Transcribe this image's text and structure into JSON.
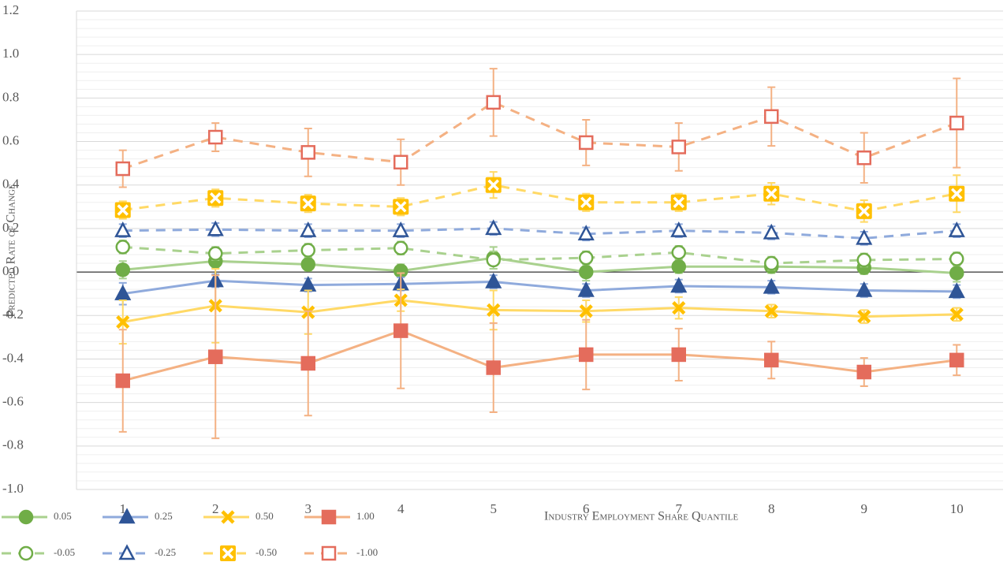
{
  "chart_data": {
    "type": "line",
    "x_label": "Industry Employment Share Quantile",
    "y_label": "Predicted Rate of Change",
    "categories": [
      "1",
      "2",
      "3",
      "4",
      "5",
      "6",
      "7",
      "8",
      "9",
      "10"
    ],
    "ylim": [
      -1.0,
      1.2
    ],
    "yticks": [
      {
        "value": -1.0,
        "label": "-1.0"
      },
      -0.8,
      -0.6,
      -0.4,
      -0.2,
      {
        "value": 0,
        "label": "0.0"
      },
      0.2,
      0.4,
      0.6,
      0.8,
      {
        "value": 1.0,
        "label": "1.0"
      },
      1.2
    ],
    "grid": true,
    "minor_grid_per_major": 5,
    "legend": "bottom-left",
    "series": [
      {
        "name": "0.05",
        "color": "#70ad47",
        "line_color": "#a9d18e",
        "marker": "circle",
        "filled": true,
        "dash": false,
        "values": [
          0.01,
          0.05,
          0.035,
          0.005,
          0.065,
          0.0,
          0.025,
          0.025,
          0.02,
          -0.005
        ],
        "errors": [
          0.04,
          0.03,
          0.03,
          0.03,
          0.05,
          0.04,
          0.03,
          0.03,
          0.03,
          0.04
        ]
      },
      {
        "name": "0.25",
        "color": "#2f5597",
        "line_color": "#8faadc",
        "marker": "triangle",
        "filled": true,
        "dash": false,
        "values": [
          -0.1,
          -0.04,
          -0.06,
          -0.055,
          -0.045,
          -0.085,
          -0.065,
          -0.07,
          -0.085,
          -0.09
        ],
        "errors": [
          0.05,
          0.03,
          0.03,
          0.03,
          0.03,
          0.03,
          0.03,
          0.03,
          0.03,
          0.03
        ]
      },
      {
        "name": "0.50",
        "color": "#ffc000",
        "line_color": "#ffd966",
        "marker": "x",
        "filled": true,
        "dash": false,
        "values": [
          -0.23,
          -0.155,
          -0.185,
          -0.13,
          -0.175,
          -0.18,
          -0.165,
          -0.18,
          -0.205,
          -0.195
        ],
        "errors": [
          0.1,
          0.17,
          0.1,
          0.05,
          0.09,
          0.05,
          0.05,
          0.03,
          0.03,
          0.03
        ]
      },
      {
        "name": "1.00",
        "color": "#e46c5c",
        "line_color": "#f4b183",
        "marker": "square",
        "filled": true,
        "dash": false,
        "values": [
          -0.5,
          -0.39,
          -0.42,
          -0.27,
          -0.44,
          -0.38,
          -0.38,
          -0.405,
          -0.46,
          -0.405
        ],
        "errors": [
          0.235,
          0.375,
          0.24,
          0.265,
          0.205,
          0.16,
          0.12,
          0.085,
          0.065,
          0.07
        ]
      },
      {
        "name": "-0.05",
        "color": "#70ad47",
        "line_color": "#a9d18e",
        "marker": "circle",
        "filled": false,
        "dash": true,
        "values": [
          0.115,
          0.085,
          0.1,
          0.11,
          0.055,
          0.065,
          0.09,
          0.04,
          0.055,
          0.06
        ],
        "errors": [
          0.03,
          0.03,
          0.03,
          0.03,
          0.04,
          0.03,
          0.03,
          0.03,
          0.03,
          0.03
        ]
      },
      {
        "name": "-0.25",
        "color": "#2f5597",
        "line_color": "#8faadc",
        "marker": "triangle",
        "filled": false,
        "dash": true,
        "values": [
          0.19,
          0.195,
          0.19,
          0.19,
          0.2,
          0.175,
          0.19,
          0.18,
          0.155,
          0.19
        ],
        "errors": [
          0.03,
          0.03,
          0.03,
          0.03,
          0.03,
          0.03,
          0.03,
          0.03,
          0.03,
          0.03
        ]
      },
      {
        "name": "-0.50",
        "color": "#ffc000",
        "line_color": "#ffd966",
        "marker": "x-box",
        "filled": true,
        "dash": true,
        "values": [
          0.285,
          0.34,
          0.315,
          0.3,
          0.4,
          0.32,
          0.32,
          0.36,
          0.28,
          0.36
        ],
        "errors": [
          0.04,
          0.04,
          0.04,
          0.04,
          0.06,
          0.04,
          0.04,
          0.05,
          0.05,
          0.085
        ]
      },
      {
        "name": "-1.00",
        "color": "#e46c5c",
        "line_color": "#f4b183",
        "marker": "square",
        "filled": false,
        "dash": true,
        "values": [
          0.475,
          0.62,
          0.55,
          0.505,
          0.78,
          0.595,
          0.575,
          0.715,
          0.525,
          0.685
        ],
        "errors": [
          0.085,
          0.065,
          0.11,
          0.105,
          0.155,
          0.105,
          0.11,
          0.135,
          0.115,
          0.205
        ]
      }
    ]
  }
}
